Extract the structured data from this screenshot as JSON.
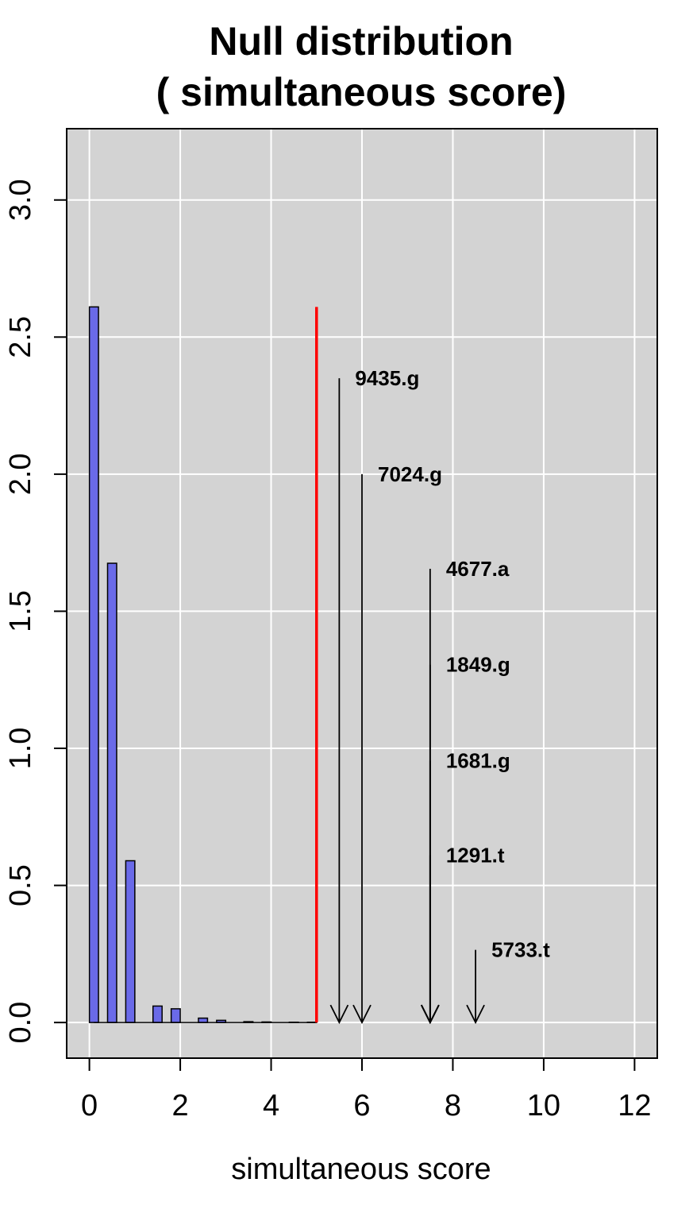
{
  "chart_data": {
    "type": "bar",
    "title": "Null distribution",
    "subtitle": "( simultaneous score)",
    "xlabel": "simultaneous score",
    "ylabel": "",
    "xlim": [
      -0.5,
      12.5
    ],
    "ylim": [
      -0.13,
      3.26
    ],
    "xticks": [
      0,
      2,
      4,
      6,
      8,
      10,
      12
    ],
    "yticks": [
      0.0,
      0.5,
      1.0,
      1.5,
      2.0,
      2.5,
      3.0
    ],
    "xtick_labels": [
      "0",
      "2",
      "4",
      "6",
      "8",
      "10",
      "12"
    ],
    "ytick_labels": [
      "0.0",
      "0.5",
      "1.0",
      "1.5",
      "2.0",
      "2.5",
      "3.0"
    ],
    "grid": true,
    "colors": {
      "panel_bg": "#d3d3d3",
      "grid": "#ffffff",
      "bar_fill": "#6a6ae8",
      "threshold": "#ff0000",
      "arrow": "#000000"
    },
    "bars": [
      {
        "x": 0.1,
        "value": 2.61
      },
      {
        "x": 0.5,
        "value": 1.675
      },
      {
        "x": 0.9,
        "value": 0.59
      },
      {
        "x": 1.5,
        "value": 0.06
      },
      {
        "x": 1.9,
        "value": 0.05
      },
      {
        "x": 2.5,
        "value": 0.016
      },
      {
        "x": 2.9,
        "value": 0.008
      },
      {
        "x": 3.5,
        "value": 0.003
      },
      {
        "x": 3.9,
        "value": 0.002
      },
      {
        "x": 4.5,
        "value": 0.001
      },
      {
        "x": 4.9,
        "value": 0.001
      }
    ],
    "threshold": {
      "x": 5.0,
      "top": 2.61
    },
    "annotations": [
      {
        "label": "9435.g",
        "x": 5.5,
        "y_top": 2.35
      },
      {
        "label": "7024.g",
        "x": 6.0,
        "y_top": 2.0
      },
      {
        "label": "4677.a",
        "x": 7.5,
        "y_top": 1.655
      },
      {
        "label": "1849.g",
        "x": 7.5,
        "y_top": 1.305
      },
      {
        "label": "1681.g",
        "x": 7.5,
        "y_top": 0.955
      },
      {
        "label": "1291.t",
        "x": 7.5,
        "y_top": 0.61
      },
      {
        "label": "5733.t",
        "x": 8.5,
        "y_top": 0.265
      }
    ]
  }
}
